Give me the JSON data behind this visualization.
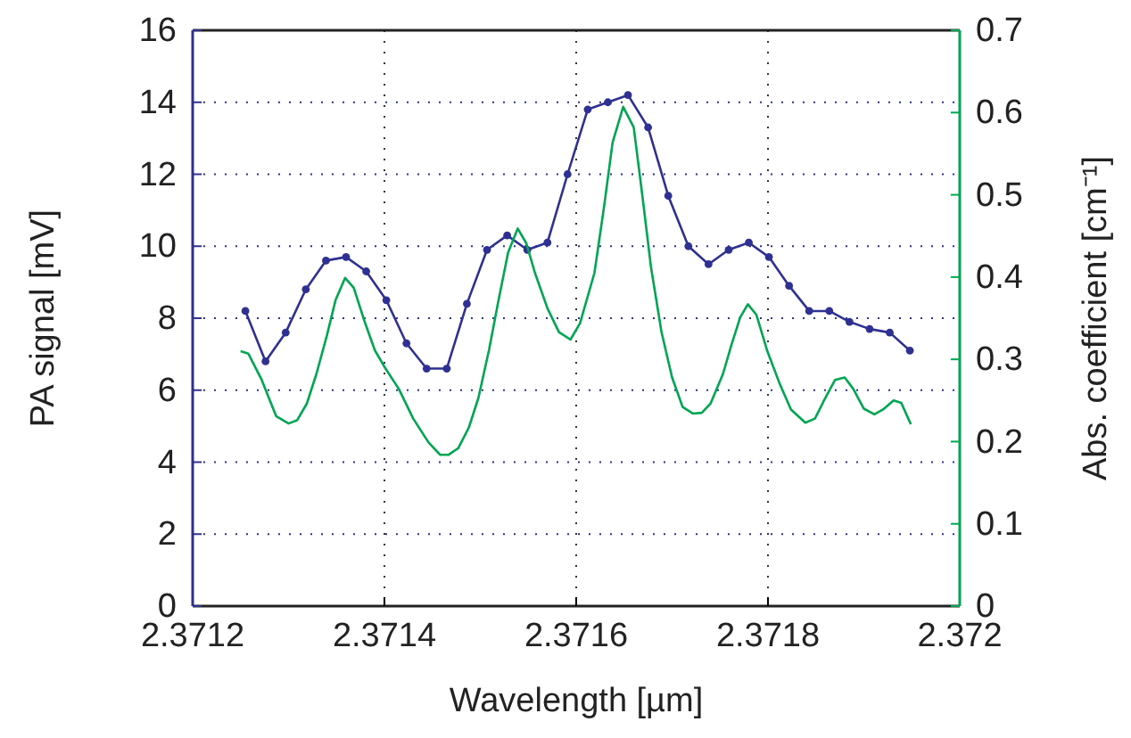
{
  "chart_data": {
    "type": "line",
    "xlabel": "Wavelength [µm]",
    "ylabel": "PA signal [mV]",
    "y2label": "Abs. coefficient [cm⁻¹]",
    "xlim": [
      2.3712,
      2.372
    ],
    "xticks": [
      2.3712,
      2.3714,
      2.3716,
      2.3718,
      2.372
    ],
    "ylim": [
      0,
      16
    ],
    "yticks": [
      0,
      2,
      4,
      6,
      8,
      10,
      12,
      14,
      16
    ],
    "y2lim": [
      0,
      0.7
    ],
    "y2ticks": [
      0,
      0.1,
      0.2,
      0.3,
      0.4,
      0.5,
      0.6,
      0.7
    ],
    "grid": true,
    "line_style": "solid",
    "series": [
      {
        "color": "#2e3192",
        "marker": "circle",
        "x": [
          2.371255,
          2.371276,
          2.371297,
          2.371318,
          2.371339,
          2.37136,
          2.371381,
          2.371402,
          2.371423,
          2.371444,
          2.371465,
          2.371486,
          2.371507,
          2.371528,
          2.371549,
          2.37157,
          2.371591,
          2.371612,
          2.371633,
          2.371654,
          2.371675,
          2.371696,
          2.371717,
          2.371738,
          2.371759,
          2.37178,
          2.371801,
          2.371822,
          2.371843,
          2.371864,
          2.371885,
          2.371906,
          2.371927,
          2.371948
        ],
        "values": [
          8.2,
          6.8,
          7.6,
          8.8,
          9.6,
          9.7,
          9.3,
          8.5,
          7.3,
          6.6,
          6.6,
          8.4,
          9.9,
          10.3,
          9.9,
          10.1,
          12.0,
          13.8,
          14.0,
          14.2,
          13.3,
          11.4,
          10.0,
          9.5,
          9.9,
          10.1,
          9.7,
          8.9,
          8.2,
          8.2,
          7.9,
          7.7,
          7.6,
          7.1
        ]
      },
      {
        "color": "#00a651",
        "marker": "none",
        "axis": "y2",
        "x": [
          2.37125,
          2.371258,
          2.371272,
          2.371287,
          2.3713,
          2.371309,
          2.371319,
          2.371329,
          2.37134,
          2.371349,
          2.371359,
          2.371368,
          2.371379,
          2.37139,
          2.371401,
          2.371415,
          2.37143,
          2.371446,
          2.371458,
          2.371467,
          2.371477,
          2.371488,
          2.371498,
          2.371509,
          2.371519,
          2.371529,
          2.371539,
          2.371548,
          2.371557,
          2.37157,
          2.371582,
          2.371594,
          2.371604,
          2.371619,
          2.371629,
          2.371638,
          2.371649,
          2.37166,
          2.371669,
          2.371678,
          2.371689,
          2.3717,
          2.371711,
          2.371722,
          2.371731,
          2.37174,
          2.371753,
          2.371762,
          2.371771,
          2.371779,
          2.371788,
          2.371799,
          2.371812,
          2.371824,
          2.371839,
          2.371849,
          2.371858,
          2.37187,
          2.37188,
          2.371889,
          2.3719,
          2.371911,
          2.37192,
          2.371931,
          2.371939,
          2.371949
        ],
        "values": [
          0.31,
          0.307,
          0.275,
          0.231,
          0.222,
          0.226,
          0.246,
          0.282,
          0.329,
          0.372,
          0.399,
          0.387,
          0.347,
          0.311,
          0.289,
          0.264,
          0.228,
          0.199,
          0.184,
          0.184,
          0.192,
          0.217,
          0.253,
          0.311,
          0.372,
          0.43,
          0.459,
          0.441,
          0.405,
          0.362,
          0.333,
          0.324,
          0.344,
          0.405,
          0.485,
          0.564,
          0.607,
          0.582,
          0.499,
          0.412,
          0.333,
          0.278,
          0.242,
          0.234,
          0.235,
          0.246,
          0.282,
          0.318,
          0.351,
          0.367,
          0.354,
          0.311,
          0.271,
          0.239,
          0.223,
          0.228,
          0.249,
          0.275,
          0.278,
          0.264,
          0.24,
          0.233,
          0.239,
          0.25,
          0.247,
          0.221
        ]
      }
    ]
  }
}
